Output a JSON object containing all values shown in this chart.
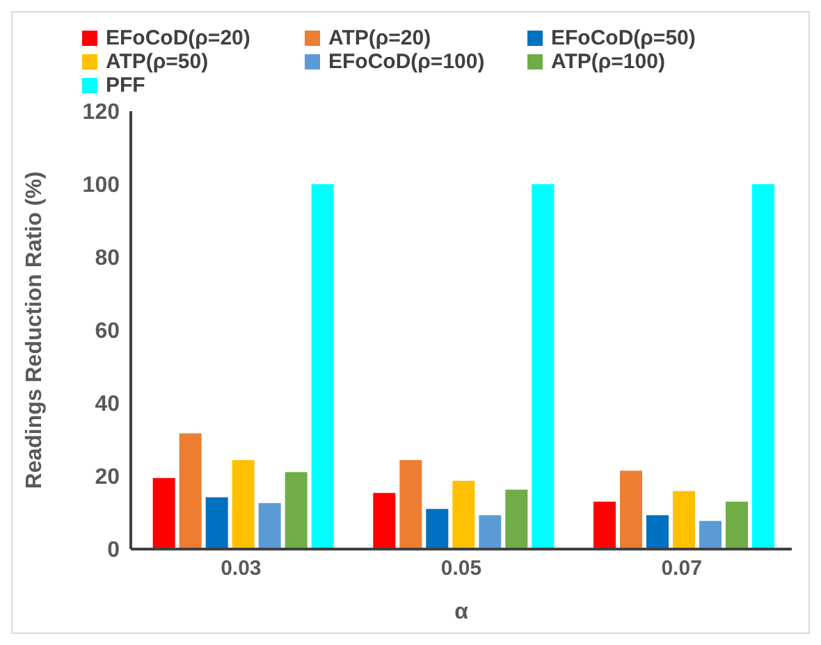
{
  "chart_data": {
    "type": "bar",
    "xlabel": "α",
    "ylabel": "Readings Reduction Ratio (%)",
    "categories": [
      "0.03",
      "0.05",
      "0.07"
    ],
    "series": [
      {
        "name": "EFoCoD(ρ=20)",
        "color": "#ff0000",
        "values": [
          19.5,
          15.4,
          13
        ]
      },
      {
        "name": "ATP(ρ=20)",
        "color": "#ed7d31",
        "values": [
          31.7,
          24.4,
          21.5
        ]
      },
      {
        "name": "EFoCoD(ρ=50)",
        "color": "#0070c0",
        "values": [
          14.2,
          11,
          9.3
        ]
      },
      {
        "name": "ATP(ρ=50)",
        "color": "#ffc000",
        "values": [
          24.4,
          18.7,
          15.9
        ]
      },
      {
        "name": "EFoCoD(ρ=100)",
        "color": "#5b9bd5",
        "values": [
          12.6,
          9.3,
          7.7
        ]
      },
      {
        "name": "ATP(ρ=100)",
        "color": "#70ad47",
        "values": [
          21.1,
          16.3,
          13
        ]
      },
      {
        "name": "PFF",
        "color": "#00ffff",
        "values": [
          100,
          100,
          100
        ]
      }
    ],
    "ylim": [
      0,
      120
    ],
    "yticks": [
      0,
      20,
      40,
      60,
      80,
      100,
      120
    ],
    "grid": false,
    "legend": "top"
  }
}
